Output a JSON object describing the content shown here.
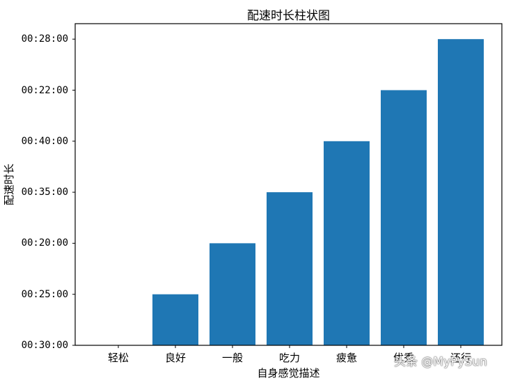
{
  "chart_data": {
    "type": "bar",
    "title": "配速时长柱状图",
    "xlabel": "自身感觉描述",
    "ylabel": "配速时长",
    "categories": [
      "轻松",
      "良好",
      "一般",
      "吃力",
      "疲惫",
      "优秀",
      "还行"
    ],
    "values": [
      "00:30:00",
      "00:25:00",
      "00:20:00",
      "00:35:00",
      "00:40:00",
      "00:22:00",
      "00:28:00"
    ],
    "value_positions": [
      0,
      1,
      2,
      3,
      4,
      5,
      6
    ],
    "y_tick_labels": [
      "00:30:00",
      "00:25:00",
      "00:20:00",
      "00:35:00",
      "00:40:00",
      "00:22:00",
      "00:28:00"
    ],
    "ylim": [
      0,
      6
    ],
    "bar_color": "#1f77b4",
    "grid": false,
    "legend": null
  },
  "watermark": "头条 @MyPySun"
}
